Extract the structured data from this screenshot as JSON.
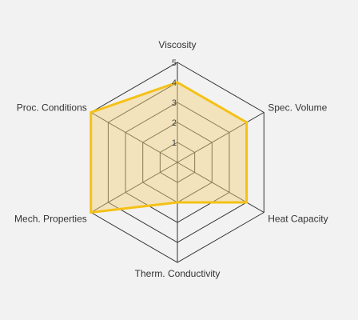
{
  "chart_data": {
    "type": "radar",
    "categories": [
      "Viscosity",
      "Spec. Volume",
      "Heat Capacity",
      "Therm. Conductivity",
      "Mech. Properties",
      "Proc. Conditions"
    ],
    "series": [
      {
        "values": [
          4.0,
          4.0,
          4.0,
          2.0,
          5.0,
          5.0
        ]
      }
    ],
    "rlim": [
      0,
      5
    ],
    "rticks": [
      "1",
      "2",
      "3",
      "4",
      "5"
    ],
    "grid": true,
    "legend": "none",
    "title": "",
    "colors": {
      "line": "#f5c116",
      "fill": "#f1d07a",
      "fill_opacity": 0.45,
      "grid": "#333333",
      "background": "#f2f2f2"
    }
  }
}
